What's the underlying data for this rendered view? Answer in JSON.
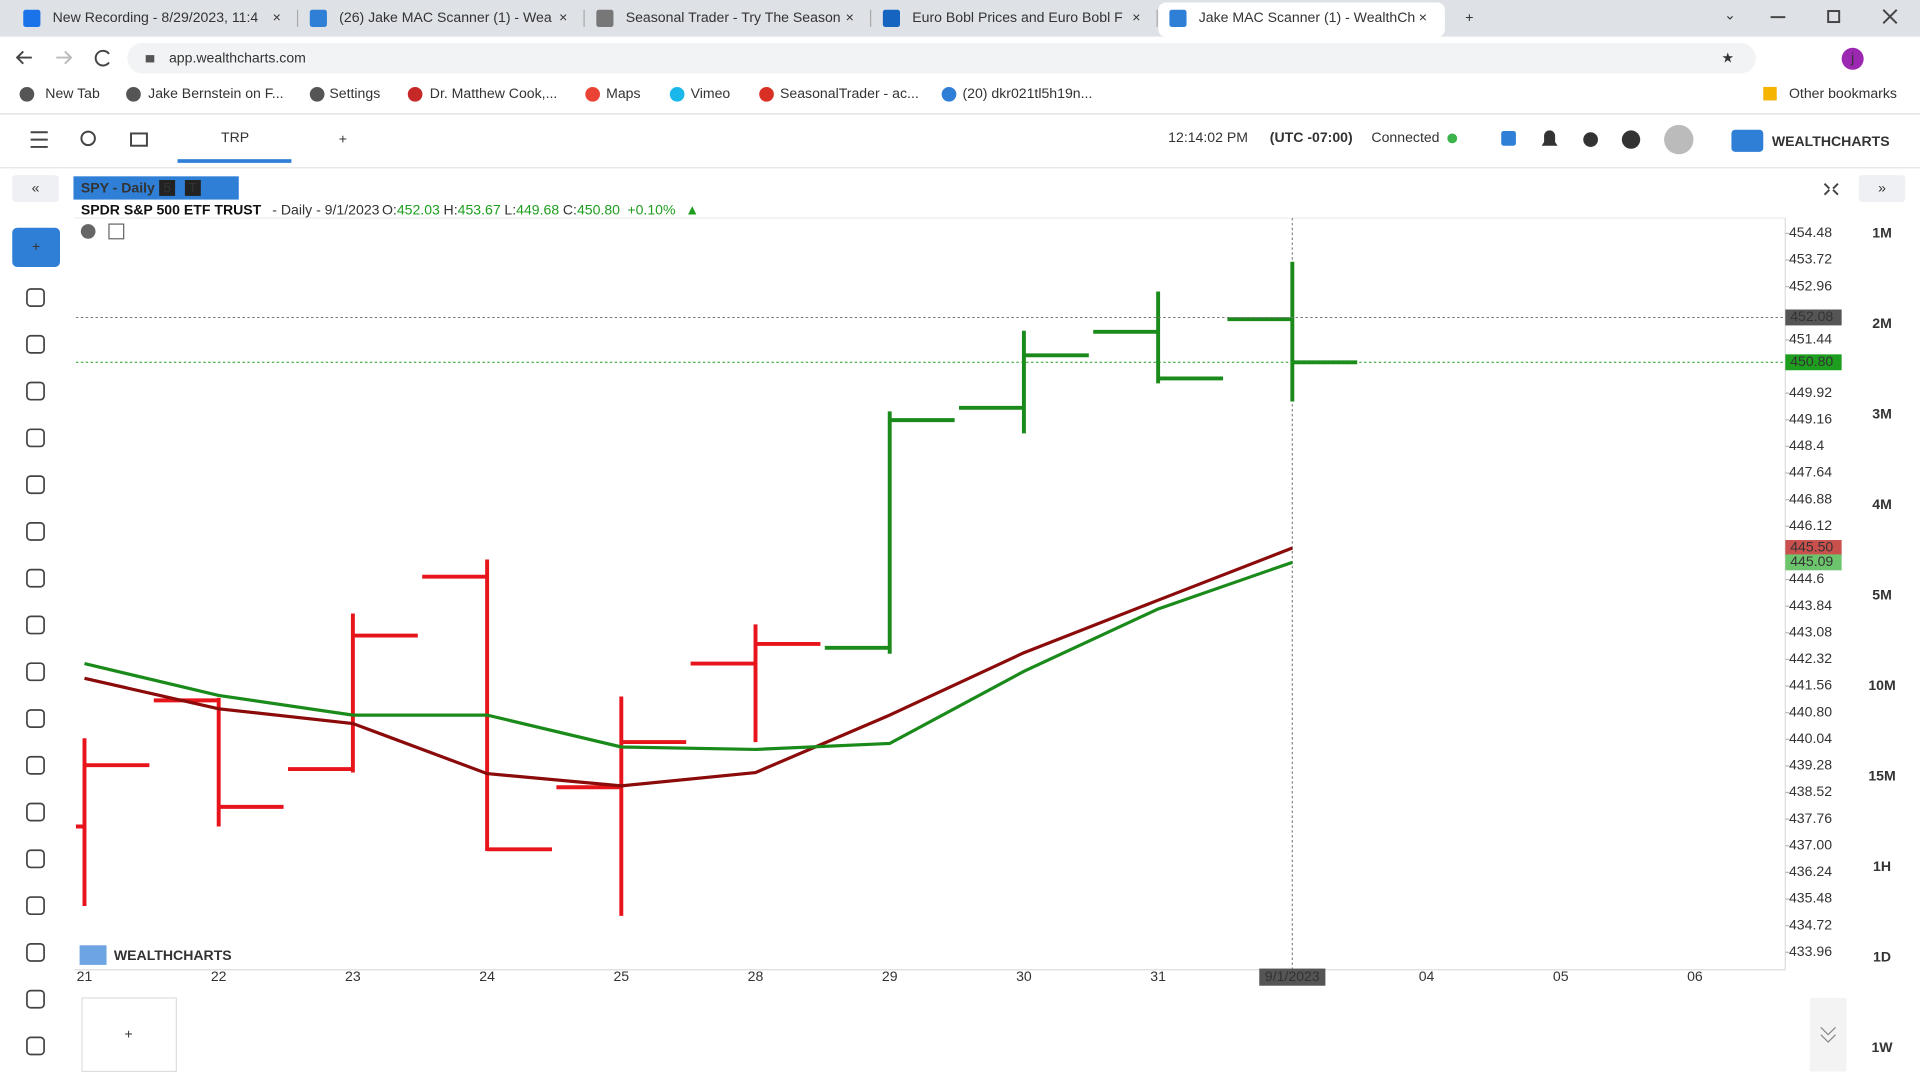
{
  "browser": {
    "tabs": [
      "New Recording - 8/29/2023, 11:4",
      "(26) Jake MAC Scanner (1) - Wea",
      "Seasonal Trader - Try The Season",
      "Euro Bobl Prices and Euro Bobl F",
      "Jake MAC Scanner (1) - WealthCh"
    ],
    "url": "app.wealthcharts.com",
    "bookmarks": [
      "New Tab",
      "Jake Bernstein on F...",
      "Settings",
      "Dr. Matthew Cook,...",
      "Maps",
      "Vimeo",
      "SeasonalTrader - ac...",
      "(20) dkr021tl5h19n..."
    ],
    "other_bookmarks": "Other bookmarks",
    "profile": "j"
  },
  "app": {
    "tab": "TRP",
    "time": "12:14:02 PM",
    "timezone": "(UTC -07:00)",
    "status": "Connected",
    "brand": "WEALTHCHARTS",
    "chart_tag": "SPY - Daily",
    "chart_tag_badges": [
      "5",
      "T"
    ],
    "watermark": "WEALTHCHARTS",
    "timeframes": [
      "1M",
      "2M",
      "3M",
      "4M",
      "5M",
      "10M",
      "15M",
      "1H",
      "1D",
      "1W"
    ]
  },
  "chart_data": {
    "type": "ohlc",
    "header": {
      "name": "SPDR S&P 500 ETF TRUST",
      "interval": "- Daily - 9/1/2023",
      "o_label": "O:",
      "o": "452.03",
      "h_label": "H:",
      "h": "453.67",
      "l_label": "L:",
      "l": "449.68",
      "c_label": "C:",
      "c": "450.80",
      "change": "+0.10%"
    },
    "categories": [
      "21",
      "22",
      "23",
      "24",
      "25",
      "28",
      "29",
      "30",
      "31",
      "9/1/2023",
      "04",
      "05",
      "06"
    ],
    "ohlc": {
      "open": [
        437.55,
        441.15,
        439.19,
        444.68,
        438.67,
        442.2,
        442.65,
        449.5,
        451.67,
        452.03,
        null,
        null,
        null
      ],
      "high": [
        440.07,
        441.22,
        443.63,
        445.17,
        441.26,
        443.32,
        449.4,
        451.7,
        452.82,
        453.67,
        null,
        null,
        null
      ],
      "low": [
        435.28,
        437.55,
        439.09,
        436.85,
        435.0,
        439.96,
        442.48,
        448.77,
        450.2,
        449.68,
        null,
        null,
        null
      ],
      "close": [
        439.3,
        438.11,
        443.0,
        436.9,
        439.96,
        442.76,
        449.15,
        451.0,
        450.34,
        450.8,
        null,
        null,
        null
      ],
      "colors": [
        "#e8141b",
        "#e8141b",
        "#e8141b",
        "#e8141b",
        "#e8141b",
        "#e8141b",
        "#1a8a1a",
        "#1a8a1a",
        "#1a8a1a",
        "#1a8a1a",
        null,
        null,
        null
      ]
    },
    "lines": [
      {
        "color": "#8b0a0a",
        "values": [
          441.78,
          440.91,
          440.49,
          439.06,
          438.71,
          439.09,
          440.73,
          442.51,
          444.01,
          445.5,
          null,
          null,
          null
        ]
      },
      {
        "color": "#1a8a1a",
        "values": [
          442.2,
          441.29,
          440.73,
          440.73,
          439.82,
          439.75,
          439.92,
          441.98,
          443.76,
          445.09,
          null,
          null,
          null
        ]
      }
    ],
    "ylim": [
      433.46,
      454.92
    ],
    "yticks": [
      454.48,
      453.72,
      452.96,
      451.44,
      449.92,
      449.16,
      448.4,
      447.64,
      446.88,
      446.12,
      444.6,
      443.84,
      443.08,
      442.32,
      441.56,
      {
        "value": 440.8,
        "label": "440.80"
      },
      440.04,
      439.28,
      438.52,
      437.76,
      {
        "value": 437.0,
        "label": "437.00"
      },
      436.24,
      435.48,
      434.72,
      433.96
    ],
    "price_labels": [
      {
        "value": 452.08,
        "label": "452.08",
        "color": "#555555"
      },
      {
        "value": 450.8,
        "label": "450.80",
        "color": "#1e9e1e"
      },
      {
        "value": 445.5,
        "label": "445.50",
        "color": "#c9504d"
      },
      {
        "value": 445.09,
        "label": "445.09",
        "color": "#6cc46c"
      }
    ],
    "crosshair_category": 9
  }
}
